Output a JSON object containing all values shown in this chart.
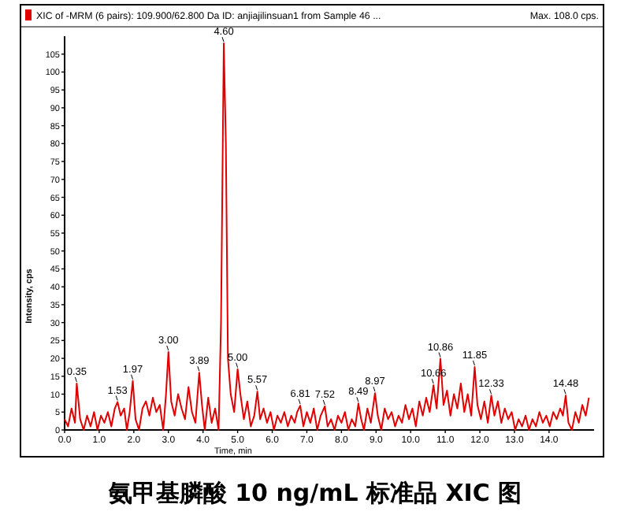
{
  "chart_data": {
    "type": "line",
    "title": "氨甲基膦酸 10 ng/mL 标准品 XIC 图",
    "xlabel": "Time, min",
    "ylabel": "Intensity, cps",
    "legend": "top left",
    "marker": "none",
    "line_style": "solid",
    "grid": false,
    "xlim": [
      0,
      15.3
    ],
    "ylim": [
      0,
      110
    ],
    "xticks": [
      {
        "value": 0,
        "label": "0.0"
      },
      {
        "value": 1,
        "label": "1.0"
      },
      {
        "value": 2,
        "label": "2.0"
      },
      {
        "value": 3,
        "label": "3.0"
      },
      {
        "value": 4,
        "label": "4.0"
      },
      {
        "value": 5,
        "label": "5.0"
      },
      {
        "value": 6,
        "label": "6.0"
      },
      {
        "value": 7,
        "label": "7.0"
      },
      {
        "value": 8,
        "label": "8.0"
      },
      {
        "value": 9,
        "label": "9.0"
      },
      {
        "value": 10,
        "label": "10.0"
      },
      {
        "value": 11,
        "label": "11.0"
      },
      {
        "value": 12,
        "label": "12.0"
      },
      {
        "value": 13,
        "label": "13.0"
      },
      {
        "value": 14,
        "label": "14.0"
      }
    ],
    "yticks": [
      0,
      5,
      10,
      15,
      20,
      25,
      30,
      35,
      40,
      45,
      50,
      55,
      60,
      65,
      70,
      75,
      80,
      85,
      90,
      95,
      100,
      105
    ],
    "series": [
      {
        "name": "XIC of -MRM (6 pairs): 109.900/62.800 Da ID: anjiajilinsuan1 from Sample 46 ...",
        "color": "#e00000",
        "x": [
          0.0,
          0.1,
          0.2,
          0.3,
          0.35,
          0.45,
          0.55,
          0.65,
          0.75,
          0.85,
          0.95,
          1.05,
          1.15,
          1.25,
          1.35,
          1.45,
          1.53,
          1.62,
          1.72,
          1.8,
          1.88,
          1.97,
          2.05,
          2.15,
          2.25,
          2.35,
          2.45,
          2.55,
          2.65,
          2.75,
          2.85,
          2.93,
          3.0,
          3.08,
          3.18,
          3.28,
          3.38,
          3.48,
          3.58,
          3.68,
          3.78,
          3.89,
          3.97,
          4.05,
          4.15,
          4.25,
          4.35,
          4.45,
          4.52,
          4.6,
          4.66,
          4.72,
          4.8,
          4.9,
          5.0,
          5.08,
          5.18,
          5.28,
          5.38,
          5.48,
          5.57,
          5.65,
          5.75,
          5.85,
          5.95,
          6.05,
          6.15,
          6.25,
          6.35,
          6.45,
          6.55,
          6.65,
          6.72,
          6.81,
          6.9,
          7.0,
          7.1,
          7.2,
          7.3,
          7.4,
          7.52,
          7.6,
          7.7,
          7.8,
          7.9,
          8.0,
          8.1,
          8.2,
          8.3,
          8.4,
          8.49,
          8.57,
          8.65,
          8.75,
          8.85,
          8.97,
          9.05,
          9.15,
          9.25,
          9.35,
          9.45,
          9.55,
          9.65,
          9.75,
          9.85,
          9.95,
          10.05,
          10.15,
          10.25,
          10.35,
          10.45,
          10.55,
          10.66,
          10.75,
          10.86,
          10.95,
          11.05,
          11.15,
          11.25,
          11.35,
          11.45,
          11.55,
          11.65,
          11.75,
          11.85,
          11.93,
          12.03,
          12.13,
          12.23,
          12.33,
          12.42,
          12.52,
          12.62,
          12.72,
          12.82,
          12.92,
          13.02,
          13.12,
          13.22,
          13.32,
          13.42,
          13.52,
          13.62,
          13.72,
          13.82,
          13.92,
          14.02,
          14.12,
          14.22,
          14.32,
          14.4,
          14.48,
          14.56,
          14.66,
          14.76,
          14.86,
          14.96,
          15.06,
          15.15
        ],
        "values": [
          3,
          1,
          6,
          2,
          13,
          3,
          0,
          4,
          1,
          5,
          0,
          4,
          2,
          5,
          1,
          6,
          7.8,
          4,
          6,
          0,
          5,
          13.7,
          3,
          0,
          6,
          8,
          4,
          9,
          5,
          7,
          0,
          10,
          21.8,
          8,
          4,
          10,
          6,
          3,
          12,
          5,
          2,
          16,
          7,
          0,
          9,
          2,
          6,
          0,
          30,
          108,
          80,
          20,
          10,
          5,
          17,
          10,
          3,
          8,
          1,
          4,
          10.7,
          3,
          6,
          2,
          5,
          0,
          4,
          2,
          5,
          1,
          4,
          2,
          5,
          6.8,
          1,
          5,
          2,
          6,
          0,
          4,
          6.6,
          1,
          3,
          0,
          4,
          2,
          5,
          0,
          3,
          1,
          7.4,
          3,
          0,
          6,
          2,
          10.3,
          4,
          0,
          6,
          3,
          5,
          1,
          4,
          2,
          7,
          3,
          6,
          1,
          8,
          4,
          9,
          5,
          12.5,
          6,
          19.9,
          7,
          11,
          4,
          10,
          6,
          13,
          5,
          10,
          4,
          17.6,
          7,
          3,
          8,
          2,
          9.6,
          4,
          8,
          2,
          6,
          3,
          5,
          0,
          3,
          1,
          4,
          0,
          3,
          1,
          5,
          2,
          4,
          1,
          5,
          3,
          6,
          4,
          9.6,
          2,
          0,
          5,
          2,
          7,
          4,
          9
        ]
      }
    ],
    "annotations": [
      "Max. 108.0 cps.",
      {
        "text": "0.35",
        "x": 0.35,
        "y": 13
      },
      {
        "text": "1.53",
        "x": 1.53,
        "y": 7.8
      },
      {
        "text": "1.97",
        "x": 1.97,
        "y": 13.7
      },
      {
        "text": "3.00",
        "x": 3.0,
        "y": 21.8
      },
      {
        "text": "3.89",
        "x": 3.89,
        "y": 16
      },
      {
        "text": "4.60",
        "x": 4.6,
        "y": 108
      },
      {
        "text": "5.00",
        "x": 5.0,
        "y": 17
      },
      {
        "text": "5.57",
        "x": 5.57,
        "y": 10.7
      },
      {
        "text": "6.81",
        "x": 6.81,
        "y": 6.8
      },
      {
        "text": "7.52",
        "x": 7.52,
        "y": 6.6
      },
      {
        "text": "8.49",
        "x": 8.49,
        "y": 7.4
      },
      {
        "text": "8.97",
        "x": 8.97,
        "y": 10.3
      },
      {
        "text": "10.66",
        "x": 10.66,
        "y": 12.5
      },
      {
        "text": "10.86",
        "x": 10.86,
        "y": 19.9
      },
      {
        "text": "11.85",
        "x": 11.85,
        "y": 17.6
      },
      {
        "text": "12.33",
        "x": 12.33,
        "y": 9.6
      },
      {
        "text": "14.48",
        "x": 14.48,
        "y": 9.6
      }
    ]
  }
}
